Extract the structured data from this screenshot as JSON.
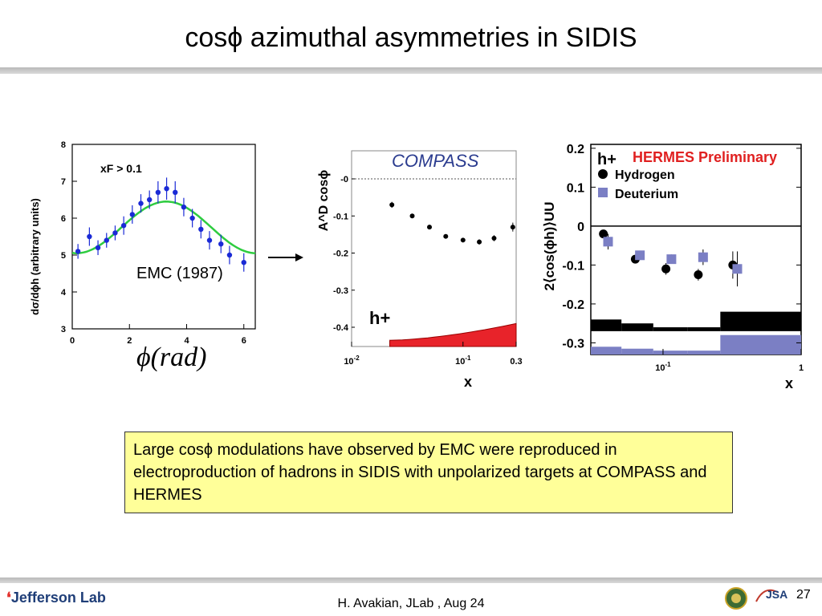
{
  "slide": {
    "title": "cosϕ azimuthal asymmetries in SIDIS",
    "emc_label": "EMC (1987)",
    "phi_label": "ϕ(rad)",
    "note": "Large cosϕ  modulations have observed by EMC were reproduced in electroproduction of hadrons in SIDIS with unpolarized targets at  COMPASS and HERMES",
    "footer": "H. Avakian, JLab ,  Aug 24",
    "page_number": "27",
    "logo_text": "Jefferson Lab",
    "jsa_text": "JSA",
    "colors": {
      "emc_points": "#1a2ad6",
      "emc_fit": "#2ecc40",
      "compass_band": "#e8232a",
      "hermes_title": "#e02020",
      "deuterium": "#7b7fc4",
      "note_bg": "#ffff99"
    }
  },
  "chart_data": [
    {
      "type": "scatter",
      "ylabel": "dσ/dϕh (arbitrary units)",
      "annotation": "xF > 0.1",
      "xlim": [
        0,
        6.4
      ],
      "ylim": [
        3,
        8
      ],
      "xticks": [
        "0",
        "2",
        "4",
        "6"
      ],
      "yticks": [
        "3",
        "4",
        "5",
        "6",
        "7",
        "8"
      ],
      "series": [
        {
          "x": [
            0.2,
            0.6,
            0.9,
            1.2,
            1.5,
            1.8,
            2.1,
            2.4,
            2.7,
            3.0,
            3.3,
            3.6,
            3.9,
            4.2,
            4.5,
            4.8,
            5.2,
            5.5,
            6.0
          ],
          "y": [
            5.1,
            5.5,
            5.2,
            5.4,
            5.6,
            5.8,
            6.1,
            6.4,
            6.5,
            6.7,
            6.8,
            6.7,
            6.3,
            6.0,
            5.7,
            5.4,
            5.3,
            5.0,
            4.8
          ],
          "err": [
            0.2,
            0.25,
            0.2,
            0.2,
            0.2,
            0.25,
            0.25,
            0.25,
            0.25,
            0.3,
            0.3,
            0.3,
            0.25,
            0.25,
            0.25,
            0.25,
            0.25,
            0.25,
            0.25
          ]
        }
      ],
      "fit": {
        "type": "cosine",
        "baseline": 5.75,
        "amplitude": 0.7
      }
    },
    {
      "type": "scatter",
      "title": "COMPASS",
      "ylabel": "A^D cosϕ",
      "xlabel": "x",
      "annotation": "h+",
      "xscale": "log",
      "xlim": [
        0.01,
        0.3
      ],
      "ylim": [
        -0.45,
        0.02
      ],
      "xticks": [
        "10-2",
        "10-1",
        "0.3"
      ],
      "yticks": [
        "-0",
        "-0.1",
        "-0.2",
        "-0.3",
        "-0.4"
      ],
      "series": [
        {
          "x": [
            0.023,
            0.035,
            0.05,
            0.07,
            0.1,
            0.14,
            0.19,
            0.28
          ],
          "y": [
            -0.07,
            -0.1,
            -0.13,
            -0.155,
            -0.165,
            -0.17,
            -0.16,
            -0.13
          ],
          "err": [
            0.008,
            0.006,
            0.006,
            0.006,
            0.006,
            0.007,
            0.008,
            0.012
          ]
        }
      ],
      "systematic_band": {
        "x": [
          0.02,
          0.3
        ],
        "y_top": [
          -0.435,
          -0.39
        ]
      }
    },
    {
      "type": "scatter",
      "title": "HERMES Preliminary",
      "ylabel": "2⟨cos(ϕh)⟩UU",
      "xlabel": "x",
      "annotation": "h+",
      "xscale": "log",
      "xlim": [
        0.03,
        1
      ],
      "ylim": [
        -0.33,
        0.21
      ],
      "xticks": [
        "10-1",
        "1"
      ],
      "yticks": [
        "0.2",
        "0.1",
        "0",
        "-0.1",
        "-0.2",
        "-0.3"
      ],
      "series": [
        {
          "name": "Hydrogen",
          "x": [
            0.037,
            0.063,
            0.105,
            0.18,
            0.32
          ],
          "y": [
            -0.02,
            -0.085,
            -0.11,
            -0.125,
            -0.1
          ],
          "err": [
            0.01,
            0.01,
            0.015,
            0.015,
            0.035
          ]
        },
        {
          "name": "Deuterium",
          "x": [
            0.04,
            0.068,
            0.115,
            0.195,
            0.345
          ],
          "y": [
            -0.04,
            -0.075,
            -0.085,
            -0.08,
            -0.11
          ],
          "err": [
            0.02,
            0.012,
            0.012,
            0.02,
            0.045
          ]
        }
      ]
    }
  ]
}
